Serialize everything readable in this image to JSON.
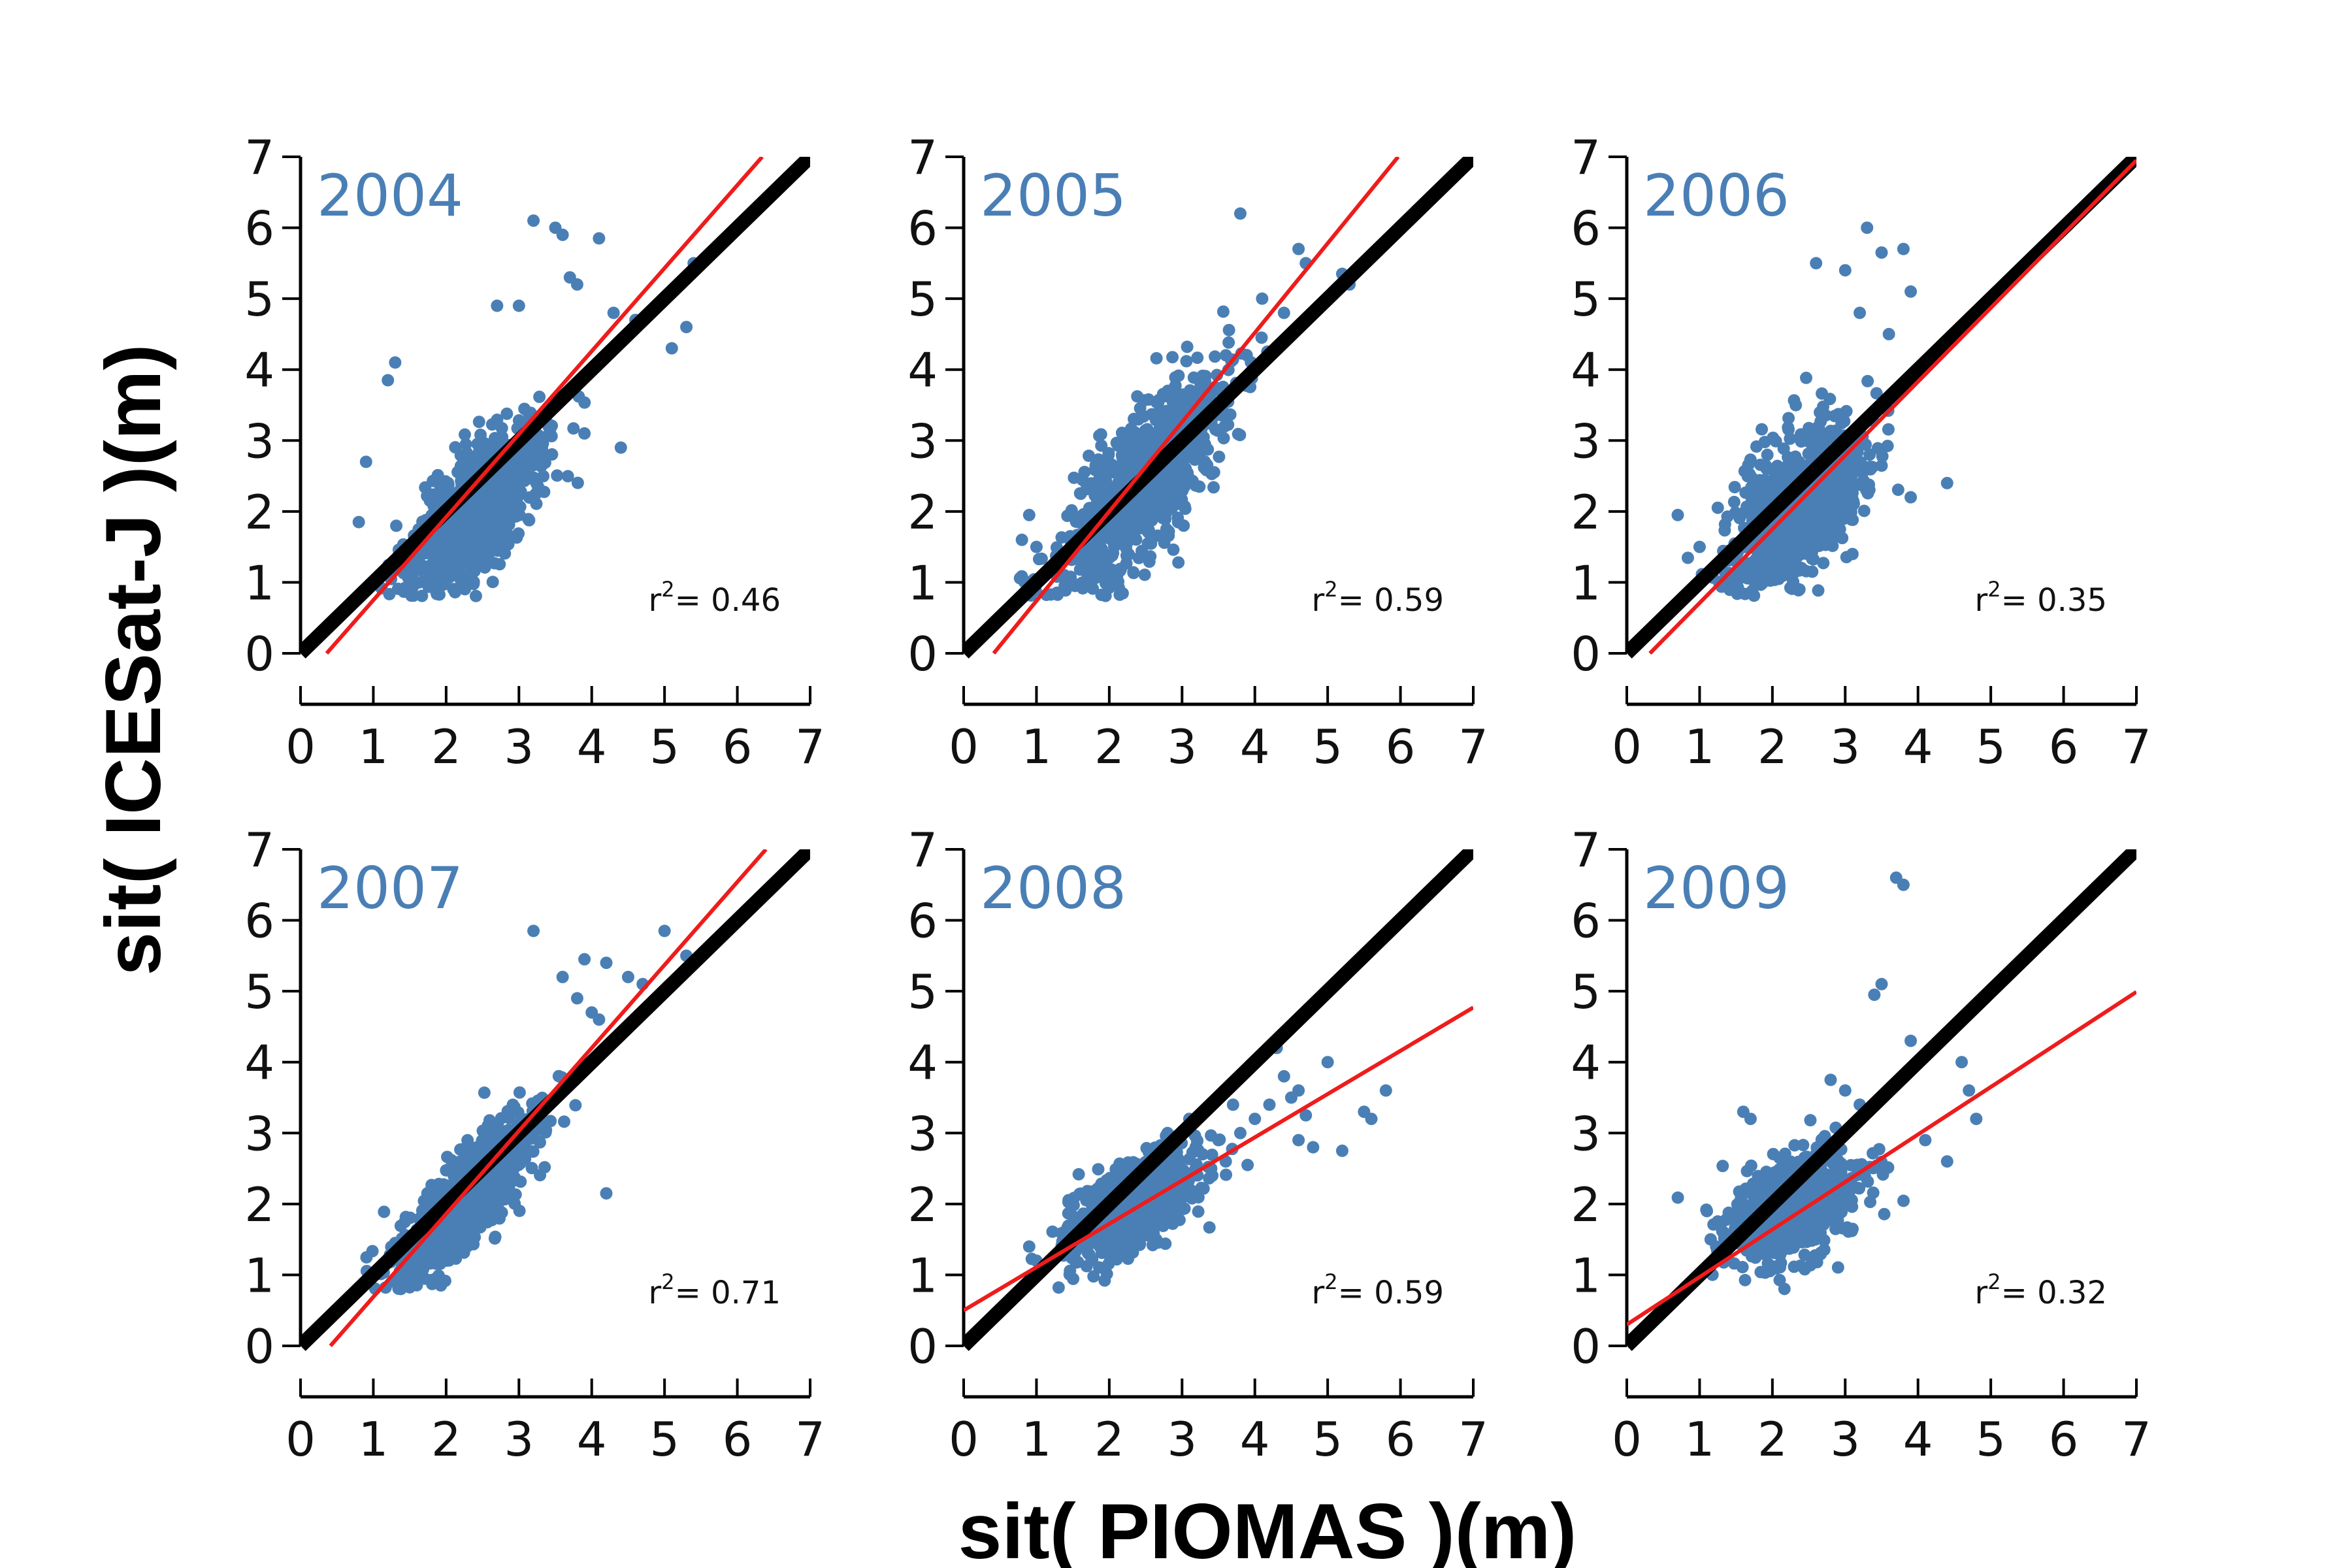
{
  "xlabel": "sit( PIOMAS )(m)",
  "ylabel": "sit( ICESat-J )(m)",
  "colors": {
    "points": "#4a7fb5",
    "identity": "#000000",
    "fit": "#ee1c1c",
    "year": "#4a7fb5"
  },
  "chart_data": [
    {
      "type": "scatter",
      "year": "2004",
      "r2_prefix": "r",
      "r2_exp": "2",
      "r2_value": "= 0.46",
      "xlim": [
        0,
        7
      ],
      "ylim": [
        0,
        7
      ],
      "xticks": [
        "0",
        "1",
        "2",
        "3",
        "4",
        "5",
        "6",
        "7"
      ],
      "yticks": [
        "0",
        "1",
        "2",
        "3",
        "4",
        "5",
        "6",
        "7"
      ],
      "fit": {
        "slope": 1.17,
        "intercept": -0.42
      },
      "points": {
        "n": 900,
        "seed": 11,
        "cx": 2.4,
        "cy": 2.0,
        "sx": 0.45,
        "sy": 0.55,
        "corr": 0.68,
        "extra": [
          [
            3.2,
            6.1
          ],
          [
            3.5,
            6.0
          ],
          [
            3.6,
            5.9
          ],
          [
            4.1,
            5.85
          ],
          [
            3.7,
            5.3
          ],
          [
            3.8,
            5.2
          ],
          [
            4.3,
            4.8
          ],
          [
            4.6,
            4.7
          ],
          [
            5.1,
            4.3
          ],
          [
            5.3,
            4.6
          ],
          [
            5.4,
            5.5
          ],
          [
            3.9,
            3.1
          ],
          [
            4.4,
            2.9
          ],
          [
            1.3,
            4.1
          ],
          [
            1.2,
            3.85
          ],
          [
            0.9,
            2.7
          ],
          [
            0.8,
            1.85
          ],
          [
            2.7,
            4.9
          ],
          [
            3.0,
            4.9
          ]
        ]
      }
    },
    {
      "type": "scatter",
      "year": "2005",
      "r2_prefix": "r",
      "r2_exp": "2",
      "r2_value": "= 0.59",
      "xlim": [
        0,
        7
      ],
      "ylim": [
        0,
        7
      ],
      "xticks": [
        "0",
        "1",
        "2",
        "3",
        "4",
        "5",
        "6",
        "7"
      ],
      "yticks": [
        "0",
        "1",
        "2",
        "3",
        "4",
        "5",
        "6",
        "7"
      ],
      "fit": {
        "slope": 1.26,
        "intercept": -0.52
      },
      "points": {
        "n": 900,
        "seed": 23,
        "cx": 2.45,
        "cy": 2.35,
        "sx": 0.55,
        "sy": 0.75,
        "corr": 0.78,
        "extra": [
          [
            3.8,
            6.2
          ],
          [
            4.6,
            5.7
          ],
          [
            4.7,
            5.5
          ],
          [
            5.2,
            5.35
          ],
          [
            5.3,
            5.2
          ],
          [
            4.1,
            5.0
          ],
          [
            4.4,
            4.8
          ],
          [
            0.9,
            1.95
          ],
          [
            0.8,
            1.6
          ],
          [
            1.0,
            1.5
          ]
        ]
      }
    },
    {
      "type": "scatter",
      "year": "2006",
      "r2_prefix": "r",
      "r2_exp": "2",
      "r2_value": "= 0.35",
      "xlim": [
        0,
        7
      ],
      "ylim": [
        0,
        7
      ],
      "xticks": [
        "0",
        "1",
        "2",
        "3",
        "4",
        "5",
        "6",
        "7"
      ],
      "yticks": [
        "0",
        "1",
        "2",
        "3",
        "4",
        "5",
        "6",
        "7"
      ],
      "fit": {
        "slope": 1.04,
        "intercept": -0.33
      },
      "points": {
        "n": 850,
        "seed": 37,
        "cx": 2.35,
        "cy": 2.1,
        "sx": 0.45,
        "sy": 0.6,
        "corr": 0.55,
        "extra": [
          [
            3.3,
            6.0
          ],
          [
            3.5,
            5.65
          ],
          [
            3.8,
            5.7
          ],
          [
            2.6,
            5.5
          ],
          [
            3.0,
            5.4
          ],
          [
            3.9,
            5.1
          ],
          [
            3.2,
            4.8
          ],
          [
            3.6,
            4.5
          ],
          [
            4.4,
            2.4
          ],
          [
            3.9,
            2.2
          ],
          [
            3.1,
            1.4
          ],
          [
            0.7,
            1.95
          ],
          [
            1.0,
            1.5
          ]
        ]
      }
    },
    {
      "type": "scatter",
      "year": "2007",
      "r2_prefix": "r",
      "r2_exp": "2",
      "r2_value": "= 0.71",
      "xlim": [
        0,
        7
      ],
      "ylim": [
        0,
        7
      ],
      "xticks": [
        "0",
        "1",
        "2",
        "3",
        "4",
        "5",
        "6",
        "7"
      ],
      "yticks": [
        "0",
        "1",
        "2",
        "3",
        "4",
        "5",
        "6",
        "7"
      ],
      "fit": {
        "slope": 1.17,
        "intercept": -0.48
      },
      "points": {
        "n": 850,
        "seed": 41,
        "cx": 2.3,
        "cy": 2.1,
        "sx": 0.45,
        "sy": 0.55,
        "corr": 0.8,
        "extra": [
          [
            3.2,
            5.85
          ],
          [
            5.0,
            5.85
          ],
          [
            5.3,
            5.5
          ],
          [
            3.9,
            5.45
          ],
          [
            4.2,
            5.4
          ],
          [
            4.5,
            5.2
          ],
          [
            4.7,
            5.1
          ],
          [
            3.6,
            5.2
          ],
          [
            3.8,
            4.9
          ],
          [
            4.0,
            4.7
          ],
          [
            4.1,
            4.6
          ],
          [
            4.2,
            2.15
          ],
          [
            1.3,
            1.45
          ]
        ]
      }
    },
    {
      "type": "scatter",
      "year": "2008",
      "r2_prefix": "r",
      "r2_exp": "2",
      "r2_value": "= 0.59",
      "xlim": [
        0,
        7
      ],
      "ylim": [
        0,
        7
      ],
      "xticks": [
        "0",
        "1",
        "2",
        "3",
        "4",
        "5",
        "6",
        "7"
      ],
      "yticks": [
        "0",
        "1",
        "2",
        "3",
        "4",
        "5",
        "6",
        "7"
      ],
      "fit": {
        "slope": 0.61,
        "intercept": 0.5
      },
      "points": {
        "n": 850,
        "seed": 53,
        "cx": 2.3,
        "cy": 1.95,
        "sx": 0.4,
        "sy": 0.35,
        "corr": 0.5,
        "extra": [
          [
            4.2,
            4.2
          ],
          [
            4.3,
            4.2
          ],
          [
            5.0,
            4.0
          ],
          [
            5.8,
            3.6
          ],
          [
            5.6,
            3.2
          ],
          [
            5.5,
            3.3
          ],
          [
            4.6,
            2.9
          ],
          [
            4.8,
            2.8
          ],
          [
            5.2,
            2.75
          ],
          [
            3.5,
            2.9
          ],
          [
            3.8,
            3.0
          ],
          [
            4.0,
            3.2
          ],
          [
            4.2,
            3.4
          ],
          [
            4.5,
            3.5
          ],
          [
            3.6,
            2.6
          ],
          [
            3.4,
            2.5
          ],
          [
            3.9,
            2.55
          ],
          [
            4.7,
            3.25
          ],
          [
            4.4,
            3.8
          ],
          [
            4.6,
            3.6
          ],
          [
            3.3,
            3.3
          ],
          [
            3.1,
            3.2
          ],
          [
            3.7,
            3.4
          ],
          [
            2.8,
            3.0
          ],
          [
            0.9,
            1.4
          ],
          [
            1.0,
            1.2
          ]
        ]
      }
    },
    {
      "type": "scatter",
      "year": "2009",
      "r2_prefix": "r",
      "r2_exp": "2",
      "r2_value": "= 0.32",
      "xlim": [
        0,
        7
      ],
      "ylim": [
        0,
        7
      ],
      "xticks": [
        "0",
        "1",
        "2",
        "3",
        "4",
        "5",
        "6",
        "7"
      ],
      "yticks": [
        "0",
        "1",
        "2",
        "3",
        "4",
        "5",
        "6",
        "7"
      ],
      "fit": {
        "slope": 0.67,
        "intercept": 0.3
      },
      "points": {
        "n": 700,
        "seed": 67,
        "cx": 2.3,
        "cy": 1.95,
        "sx": 0.45,
        "sy": 0.4,
        "corr": 0.5,
        "extra": [
          [
            3.7,
            6.6
          ],
          [
            3.8,
            6.5
          ],
          [
            3.5,
            5.1
          ],
          [
            3.4,
            4.95
          ],
          [
            3.9,
            4.3
          ],
          [
            4.6,
            4.0
          ],
          [
            4.7,
            3.6
          ],
          [
            4.8,
            3.2
          ],
          [
            4.1,
            2.9
          ],
          [
            4.4,
            2.6
          ],
          [
            3.2,
            3.4
          ],
          [
            3.0,
            3.6
          ],
          [
            2.8,
            3.75
          ],
          [
            1.6,
            3.3
          ],
          [
            1.7,
            3.2
          ],
          [
            1.1,
            1.9
          ]
        ]
      }
    }
  ]
}
